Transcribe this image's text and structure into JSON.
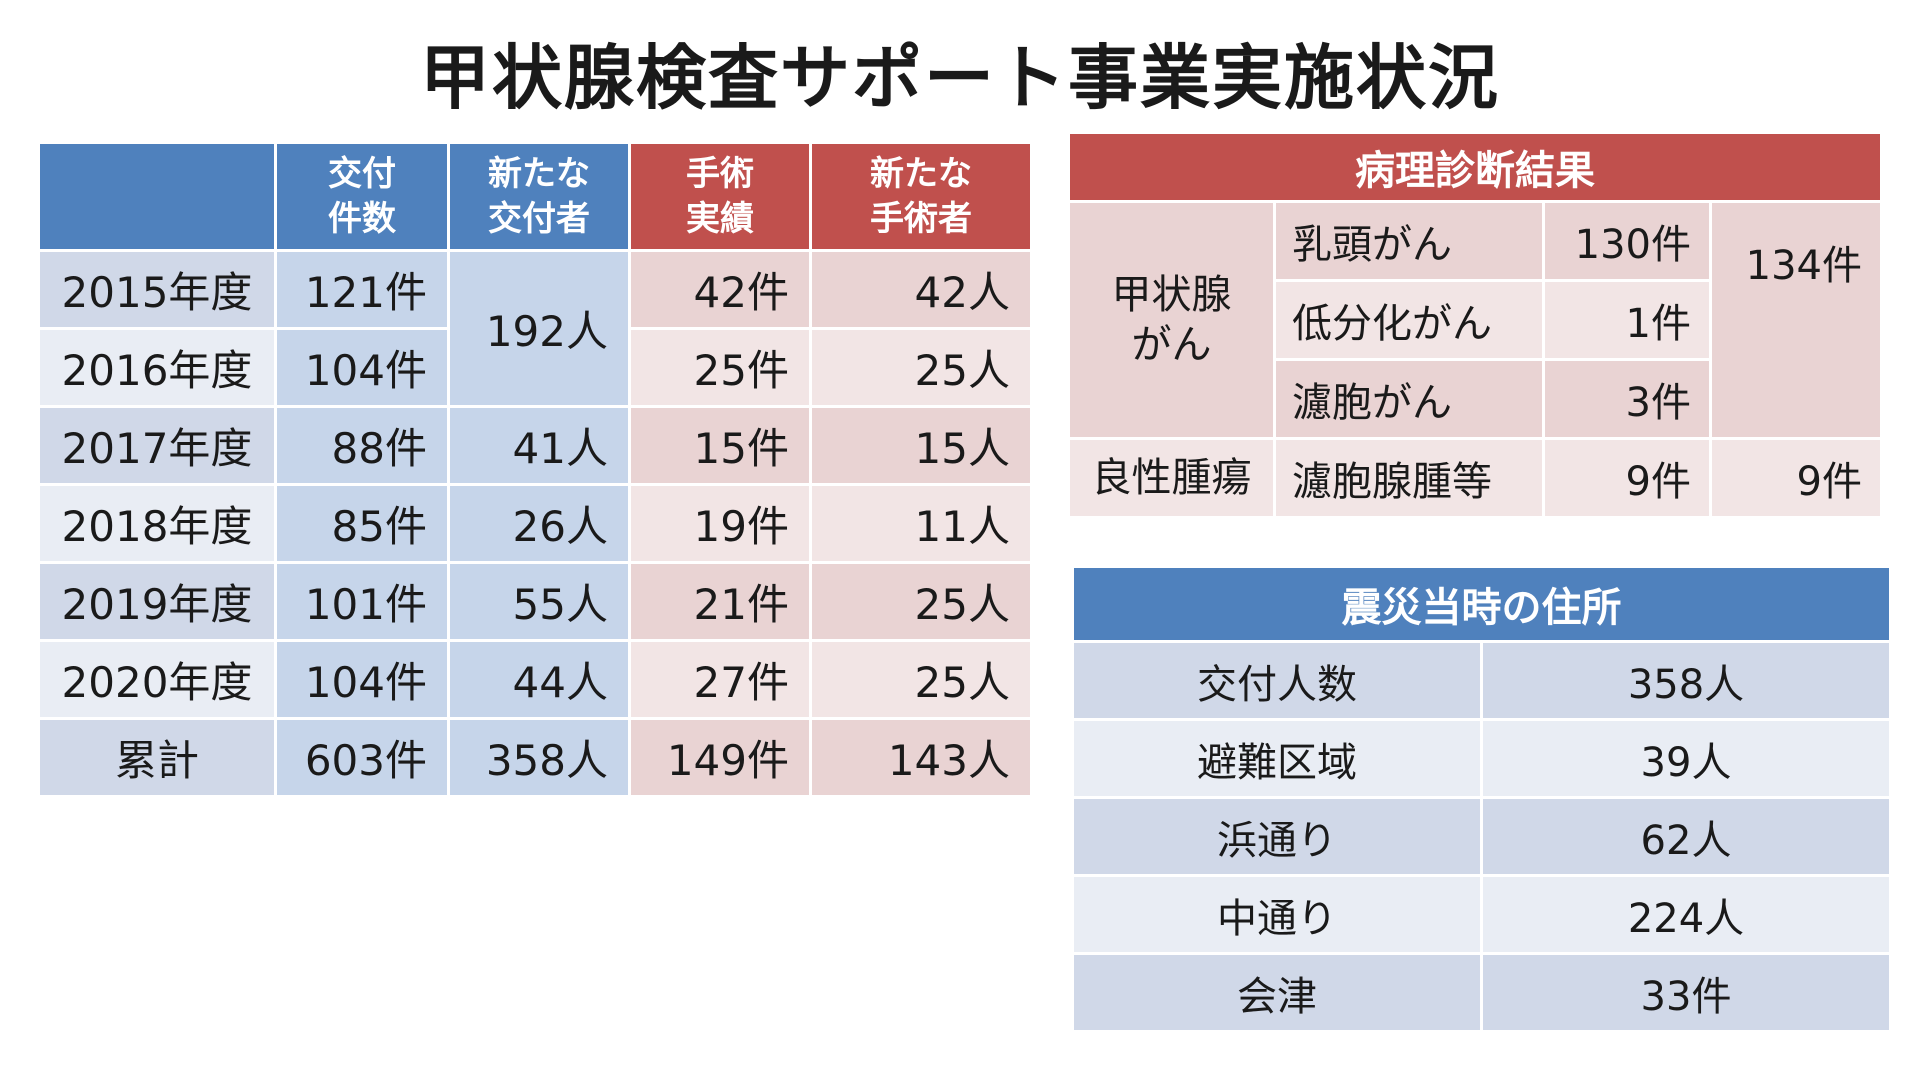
{
  "title": "甲状腺検査サポート事業実施状況",
  "main_table": {
    "headers": {
      "year": "",
      "issued": [
        "交付",
        "件数"
      ],
      "new_recipients": [
        "新たな",
        "交付者"
      ],
      "surgeries": [
        "手術",
        "実績"
      ],
      "new_surgery_patients": [
        "新たな",
        "手術者"
      ]
    },
    "rows": [
      {
        "year": "2015年度",
        "issued": "121件",
        "new_recipients": "192人",
        "surgeries": "42件",
        "new_patients": "42人"
      },
      {
        "year": "2016年度",
        "issued": "104件",
        "new_recipients": "",
        "surgeries": "25件",
        "new_patients": "25人"
      },
      {
        "year": "2017年度",
        "issued": "88件",
        "new_recipients": "41人",
        "surgeries": "15件",
        "new_patients": "15人"
      },
      {
        "year": "2018年度",
        "issued": "85件",
        "new_recipients": "26人",
        "surgeries": "19件",
        "new_patients": "11人"
      },
      {
        "year": "2019年度",
        "issued": "101件",
        "new_recipients": "55人",
        "surgeries": "21件",
        "new_patients": "25人"
      },
      {
        "year": "2020年度",
        "issued": "104件",
        "new_recipients": "44人",
        "surgeries": "27件",
        "new_patients": "25人"
      }
    ],
    "total": {
      "year": "累計",
      "issued": "603件",
      "new_recipients": "358人",
      "surgeries": "149件",
      "new_patients": "143人"
    }
  },
  "pathology": {
    "title": "病理診断結果",
    "cancer": {
      "category": [
        "甲状腺",
        "がん"
      ],
      "items": [
        {
          "name": "乳頭がん",
          "value": "130件"
        },
        {
          "name": "低分化がん",
          "value": "1件"
        },
        {
          "name": "濾胞がん",
          "value": "3件"
        }
      ],
      "total": "134件"
    },
    "benign": {
      "category": "良性腫瘍",
      "name": "濾胞腺腫等",
      "value": "9件",
      "total": "9件"
    }
  },
  "address": {
    "title": "震災当時の住所",
    "rows": [
      {
        "label": "交付人数",
        "value": "358人"
      },
      {
        "label": "避難区域",
        "value": "39人"
      },
      {
        "label": "浜通り",
        "value": "62人"
      },
      {
        "label": "中通り",
        "value": "224人"
      },
      {
        "label": "会津",
        "value": "33件"
      }
    ]
  }
}
